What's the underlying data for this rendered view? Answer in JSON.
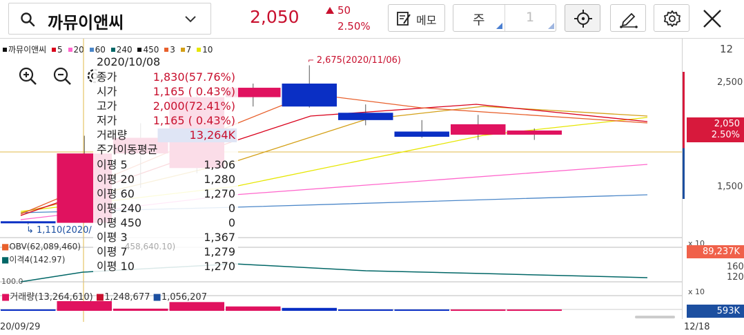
{
  "header": {
    "stock_name": "까뮤이앤씨",
    "price": "2,050",
    "change": "50",
    "change_rate": "2.50%",
    "memo_label": "메모",
    "period_label": "주",
    "period_count": "1"
  },
  "legend": {
    "name": "까뮤이앤씨",
    "items": [
      {
        "label": "5",
        "color": "#d9001b"
      },
      {
        "label": "20",
        "color": "#ff66cc"
      },
      {
        "label": "60",
        "color": "#4a86c8"
      },
      {
        "label": "240",
        "color": "#006666"
      },
      {
        "label": "450",
        "color": "#111111"
      },
      {
        "label": "3",
        "color": "#e8602c"
      },
      {
        "label": "7",
        "color": "#d4a017"
      },
      {
        "label": "10",
        "color": "#e6e600"
      }
    ]
  },
  "chart_tools": {
    "zoom_in": "zoom-in-icon",
    "zoom_out": "zoom-out-icon",
    "settings": "gear-icon"
  },
  "tooltip": {
    "date": "2020/10/08",
    "rows": [
      {
        "key": "종가",
        "value": "1,830(57.76%)",
        "tone": "red"
      },
      {
        "key": "시가",
        "value": "1,165 ( 0.43%)",
        "tone": "red"
      },
      {
        "key": "고가",
        "value": "2,000(72.41%)",
        "tone": "red"
      },
      {
        "key": "저가",
        "value": "1,165 ( 0.43%)",
        "tone": "red"
      },
      {
        "key": "거래량",
        "value": "13,264K",
        "tone": "red"
      }
    ],
    "ma_title": "주가이동평균",
    "ma_rows": [
      {
        "key": "이평 5",
        "value": "1,306"
      },
      {
        "key": "이평 20",
        "value": "1,280"
      },
      {
        "key": "이평 60",
        "value": "1,270"
      },
      {
        "key": "이평 240",
        "value": "0"
      },
      {
        "key": "이평 450",
        "value": "0"
      },
      {
        "key": "이평 3",
        "value": "1,367"
      },
      {
        "key": "이평 7",
        "value": "1,279"
      },
      {
        "key": "이평 10",
        "value": "1,270"
      }
    ]
  },
  "annotations": {
    "high_marker": "2,675(2020/11/06)",
    "low_marker": "1,110(2020/"
  },
  "right_axis": {
    "top_label": "12",
    "ticks": [
      "2,500",
      "1,500"
    ],
    "price_tag_value": "2,050",
    "price_tag_rate": "2.50%",
    "obv_scale": "x 10",
    "obv_value": "89,237K",
    "disparity_ticks": [
      "160",
      "120"
    ],
    "vol_scale": "x 10",
    "vol_value": "593K"
  },
  "indicators": {
    "obv_label": "OBV(62,089,460)",
    "obv_second": "458,640.10)",
    "disparity_label": "이격4(142.97)",
    "disparity_base": "100.0",
    "volume_label": "거래량(13,264,610)",
    "volume_ma1": "1,248,677",
    "volume_ma2": "1,056,207"
  },
  "dates": {
    "left": "20/09/29",
    "right": "12/18"
  },
  "colors": {
    "up": "#e0125f",
    "down": "#0a2fc4",
    "accent_red": "#c8102e"
  },
  "chart_data": {
    "type": "candlestick",
    "interval": "weekly",
    "price_axis_ticks": [
      1500,
      2500
    ],
    "candles": [
      {
        "date": "",
        "open": 1180,
        "high": 1180,
        "low": 1150,
        "close": 1165
      },
      {
        "date": "2020/10/08",
        "open": 1165,
        "high": 2000,
        "low": 1165,
        "close": 1830
      },
      {
        "date": "",
        "open": 1830,
        "high": 2120,
        "low": 1500,
        "close": 1980
      },
      {
        "date": "",
        "open": 1690,
        "high": 2460,
        "low": 1640,
        "close": 2370
      },
      {
        "date": "",
        "open": 2370,
        "high": 2500,
        "low": 2280,
        "close": 2460
      },
      {
        "date": "2020/11/06",
        "open": 2500,
        "high": 2675,
        "low": 2270,
        "close": 2280
      },
      {
        "date": "",
        "open": 2220,
        "high": 2300,
        "low": 2100,
        "close": 2150
      },
      {
        "date": "",
        "open": 2040,
        "high": 2150,
        "low": 1980,
        "close": 1990
      },
      {
        "date": "",
        "open": 2010,
        "high": 2200,
        "low": 1960,
        "close": 2110
      },
      {
        "date": "12/18",
        "open": 2010,
        "high": 2070,
        "low": 1960,
        "close": 2050
      }
    ],
    "volume": [
      2000,
      13264,
      3000,
      12000,
      6000,
      4000,
      2000,
      1500,
      1200,
      593
    ]
  }
}
